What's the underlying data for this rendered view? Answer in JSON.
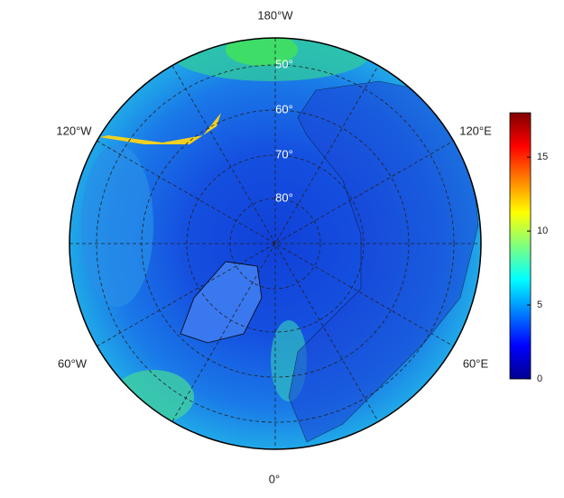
{
  "map": {
    "lon_labels": [
      "180°W",
      "120°W",
      "120°E",
      "60°W",
      "60°E",
      "0°"
    ],
    "lat_labels": [
      "50°",
      "60°",
      "70°",
      "80°"
    ],
    "colorbar": {
      "lim": [
        0,
        18
      ],
      "ticks": [
        0,
        5,
        10,
        15
      ]
    }
  }
}
